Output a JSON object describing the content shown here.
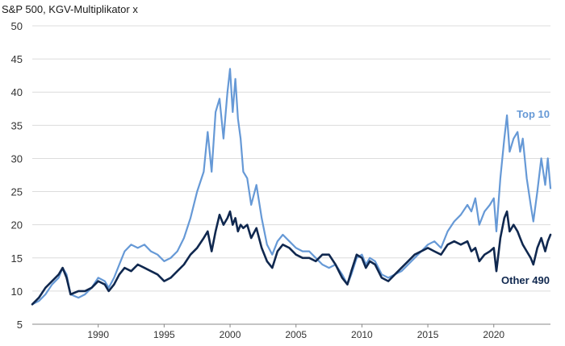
{
  "chart_data": {
    "type": "line",
    "title": "S&P 500, KGV-Multiplikator x",
    "xlabel": "",
    "ylabel": "",
    "xlim": [
      1985.0,
      2024.3
    ],
    "ylim": [
      5,
      50
    ],
    "yticks": [
      5,
      10,
      15,
      20,
      25,
      30,
      35,
      40,
      45,
      50
    ],
    "xticks": [
      1990,
      1995,
      2000,
      2005,
      2010,
      2015,
      2020
    ],
    "grid": "horizontal",
    "series": [
      {
        "name": "Top 10",
        "color": "#6699d6",
        "points": [
          [
            1985.0,
            8.0
          ],
          [
            1985.5,
            8.5
          ],
          [
            1986.0,
            9.5
          ],
          [
            1986.5,
            11.0
          ],
          [
            1987.0,
            12.0
          ],
          [
            1987.3,
            13.5
          ],
          [
            1987.6,
            12.5
          ],
          [
            1987.9,
            9.5
          ],
          [
            1988.5,
            9.0
          ],
          [
            1989.0,
            9.5
          ],
          [
            1989.5,
            10.5
          ],
          [
            1990.0,
            12.0
          ],
          [
            1990.5,
            11.5
          ],
          [
            1990.8,
            10.5
          ],
          [
            1991.2,
            12.0
          ],
          [
            1991.6,
            14.0
          ],
          [
            1992.0,
            16.0
          ],
          [
            1992.5,
            17.0
          ],
          [
            1993.0,
            16.5
          ],
          [
            1993.5,
            17.0
          ],
          [
            1994.0,
            16.0
          ],
          [
            1994.5,
            15.5
          ],
          [
            1995.0,
            14.5
          ],
          [
            1995.5,
            15.0
          ],
          [
            1996.0,
            16.0
          ],
          [
            1996.5,
            18.0
          ],
          [
            1997.0,
            21.0
          ],
          [
            1997.5,
            25.0
          ],
          [
            1998.0,
            28.0
          ],
          [
            1998.3,
            34.0
          ],
          [
            1998.6,
            28.0
          ],
          [
            1998.9,
            37.0
          ],
          [
            1999.2,
            39.0
          ],
          [
            1999.5,
            33.0
          ],
          [
            1999.8,
            40.0
          ],
          [
            2000.0,
            43.5
          ],
          [
            2000.2,
            37.0
          ],
          [
            2000.4,
            42.0
          ],
          [
            2000.6,
            36.0
          ],
          [
            2000.8,
            33.0
          ],
          [
            2001.0,
            28.0
          ],
          [
            2001.3,
            27.0
          ],
          [
            2001.6,
            23.0
          ],
          [
            2002.0,
            26.0
          ],
          [
            2002.4,
            21.0
          ],
          [
            2002.8,
            17.0
          ],
          [
            2003.2,
            15.5
          ],
          [
            2003.6,
            17.5
          ],
          [
            2004.0,
            18.5
          ],
          [
            2004.5,
            17.5
          ],
          [
            2005.0,
            16.5
          ],
          [
            2005.5,
            16.0
          ],
          [
            2006.0,
            16.0
          ],
          [
            2006.5,
            15.0
          ],
          [
            2007.0,
            14.0
          ],
          [
            2007.5,
            13.5
          ],
          [
            2008.0,
            14.0
          ],
          [
            2008.5,
            12.5
          ],
          [
            2008.9,
            11.0
          ],
          [
            2009.2,
            12.5
          ],
          [
            2009.6,
            15.0
          ],
          [
            2010.0,
            15.5
          ],
          [
            2010.3,
            14.0
          ],
          [
            2010.6,
            15.0
          ],
          [
            2011.0,
            14.5
          ],
          [
            2011.5,
            12.5
          ],
          [
            2012.0,
            12.0
          ],
          [
            2012.5,
            12.5
          ],
          [
            2013.0,
            13.0
          ],
          [
            2013.5,
            14.0
          ],
          [
            2014.0,
            15.0
          ],
          [
            2014.5,
            16.0
          ],
          [
            2015.0,
            17.0
          ],
          [
            2015.5,
            17.5
          ],
          [
            2016.0,
            16.5
          ],
          [
            2016.5,
            19.0
          ],
          [
            2017.0,
            20.5
          ],
          [
            2017.5,
            21.5
          ],
          [
            2018.0,
            23.0
          ],
          [
            2018.3,
            22.0
          ],
          [
            2018.6,
            24.0
          ],
          [
            2018.9,
            20.0
          ],
          [
            2019.3,
            22.0
          ],
          [
            2019.7,
            23.0
          ],
          [
            2020.0,
            24.0
          ],
          [
            2020.2,
            19.0
          ],
          [
            2020.5,
            27.0
          ],
          [
            2020.8,
            33.0
          ],
          [
            2021.0,
            36.5
          ],
          [
            2021.2,
            31.0
          ],
          [
            2021.5,
            33.0
          ],
          [
            2021.8,
            34.0
          ],
          [
            2022.0,
            31.0
          ],
          [
            2022.2,
            33.0
          ],
          [
            2022.5,
            27.0
          ],
          [
            2022.8,
            23.0
          ],
          [
            2023.0,
            20.5
          ],
          [
            2023.3,
            25.0
          ],
          [
            2023.6,
            30.0
          ],
          [
            2023.9,
            26.0
          ],
          [
            2024.1,
            30.0
          ],
          [
            2024.3,
            25.5
          ]
        ]
      },
      {
        "name": "Other 490",
        "color": "#10284f",
        "points": [
          [
            1985.0,
            8.0
          ],
          [
            1985.5,
            9.0
          ],
          [
            1986.0,
            10.5
          ],
          [
            1986.5,
            11.5
          ],
          [
            1987.0,
            12.5
          ],
          [
            1987.3,
            13.5
          ],
          [
            1987.6,
            12.0
          ],
          [
            1987.9,
            9.5
          ],
          [
            1988.5,
            10.0
          ],
          [
            1989.0,
            10.0
          ],
          [
            1989.5,
            10.5
          ],
          [
            1990.0,
            11.5
          ],
          [
            1990.5,
            11.0
          ],
          [
            1990.8,
            10.0
          ],
          [
            1991.2,
            11.0
          ],
          [
            1991.6,
            12.5
          ],
          [
            1992.0,
            13.5
          ],
          [
            1992.5,
            13.0
          ],
          [
            1993.0,
            14.0
          ],
          [
            1993.5,
            13.5
          ],
          [
            1994.0,
            13.0
          ],
          [
            1994.5,
            12.5
          ],
          [
            1995.0,
            11.5
          ],
          [
            1995.5,
            12.0
          ],
          [
            1996.0,
            13.0
          ],
          [
            1996.5,
            14.0
          ],
          [
            1997.0,
            15.5
          ],
          [
            1997.5,
            16.5
          ],
          [
            1998.0,
            18.0
          ],
          [
            1998.3,
            19.0
          ],
          [
            1998.6,
            16.0
          ],
          [
            1998.9,
            19.0
          ],
          [
            1999.2,
            21.5
          ],
          [
            1999.5,
            20.0
          ],
          [
            1999.8,
            21.0
          ],
          [
            2000.0,
            22.0
          ],
          [
            2000.2,
            20.0
          ],
          [
            2000.4,
            21.0
          ],
          [
            2000.6,
            19.0
          ],
          [
            2000.8,
            20.0
          ],
          [
            2001.0,
            19.5
          ],
          [
            2001.3,
            20.0
          ],
          [
            2001.6,
            18.0
          ],
          [
            2002.0,
            19.5
          ],
          [
            2002.4,
            16.5
          ],
          [
            2002.8,
            14.5
          ],
          [
            2003.2,
            13.5
          ],
          [
            2003.6,
            16.0
          ],
          [
            2004.0,
            17.0
          ],
          [
            2004.5,
            16.5
          ],
          [
            2005.0,
            15.5
          ],
          [
            2005.5,
            15.0
          ],
          [
            2006.0,
            15.0
          ],
          [
            2006.5,
            14.5
          ],
          [
            2007.0,
            15.5
          ],
          [
            2007.5,
            15.5
          ],
          [
            2008.0,
            14.0
          ],
          [
            2008.5,
            12.0
          ],
          [
            2008.9,
            11.0
          ],
          [
            2009.2,
            13.0
          ],
          [
            2009.6,
            15.5
          ],
          [
            2010.0,
            15.0
          ],
          [
            2010.3,
            13.5
          ],
          [
            2010.6,
            14.5
          ],
          [
            2011.0,
            14.0
          ],
          [
            2011.5,
            12.0
          ],
          [
            2012.0,
            11.5
          ],
          [
            2012.5,
            12.5
          ],
          [
            2013.0,
            13.5
          ],
          [
            2013.5,
            14.5
          ],
          [
            2014.0,
            15.5
          ],
          [
            2014.5,
            16.0
          ],
          [
            2015.0,
            16.5
          ],
          [
            2015.5,
            16.0
          ],
          [
            2016.0,
            15.5
          ],
          [
            2016.5,
            17.0
          ],
          [
            2017.0,
            17.5
          ],
          [
            2017.5,
            17.0
          ],
          [
            2018.0,
            17.5
          ],
          [
            2018.3,
            16.0
          ],
          [
            2018.6,
            16.5
          ],
          [
            2018.9,
            14.5
          ],
          [
            2019.3,
            15.5
          ],
          [
            2019.7,
            16.0
          ],
          [
            2020.0,
            16.5
          ],
          [
            2020.2,
            13.0
          ],
          [
            2020.5,
            18.0
          ],
          [
            2020.8,
            21.0
          ],
          [
            2021.0,
            22.0
          ],
          [
            2021.2,
            19.0
          ],
          [
            2021.5,
            20.0
          ],
          [
            2021.8,
            19.0
          ],
          [
            2022.0,
            18.0
          ],
          [
            2022.2,
            17.0
          ],
          [
            2022.5,
            16.0
          ],
          [
            2022.8,
            15.0
          ],
          [
            2023.0,
            14.0
          ],
          [
            2023.3,
            16.5
          ],
          [
            2023.6,
            18.0
          ],
          [
            2023.9,
            16.0
          ],
          [
            2024.1,
            17.5
          ],
          [
            2024.3,
            18.5
          ]
        ]
      }
    ],
    "annotations": [
      {
        "text": "Top 10",
        "series": "Top 10",
        "near": "right, above line"
      },
      {
        "text": "Other 490",
        "series": "Other 490",
        "near": "right, below line"
      }
    ]
  }
}
